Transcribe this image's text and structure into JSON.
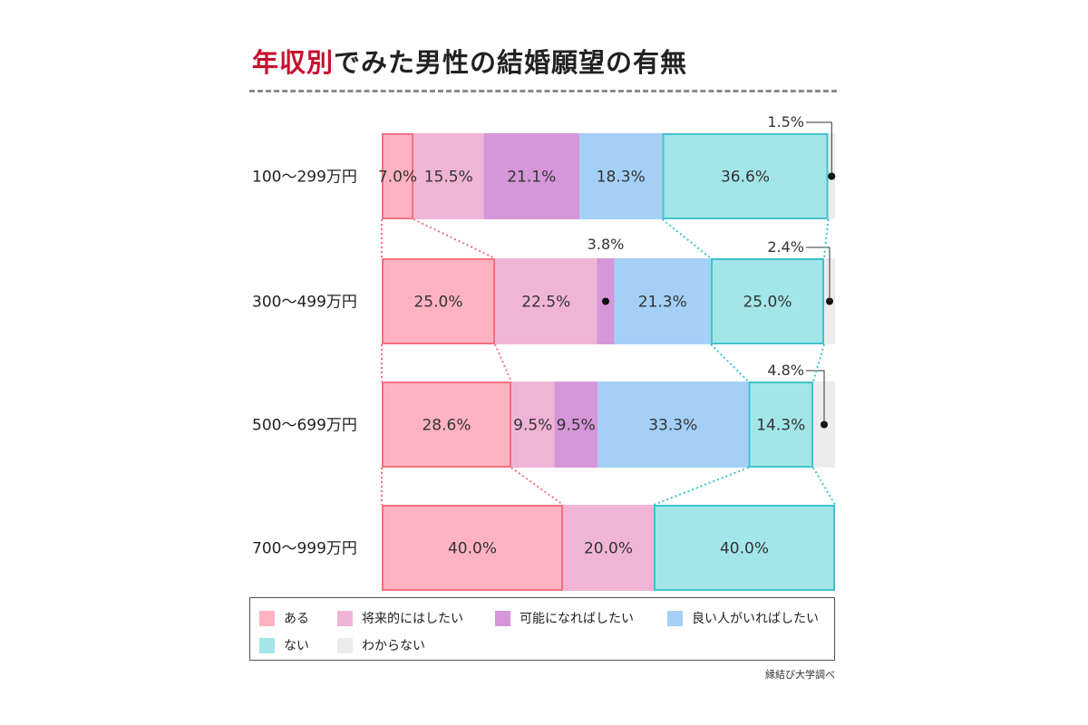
{
  "title": {
    "accent": "年収別",
    "rest": "でみた男性の結婚願望の有無"
  },
  "source": "縁結び大学調べ",
  "colors": {
    "ある": "#ffb3c1",
    "将来的にはしたい": "#f0b5d6",
    "可能になればしたい": "#d597d9",
    "良い人がいればしたい": "#a4d0f7",
    "ない": "#a3e6e9",
    "わからない": "#ececec",
    "ある_border": "#f4707f",
    "ない_border": "#3fc3cc"
  },
  "chart_data": {
    "type": "bar",
    "stacked": true,
    "orientation": "horizontal",
    "title": "年収別でみた男性の結婚願望の有無",
    "categories": [
      "100〜299万円",
      "300〜499万円",
      "500〜699万円",
      "700〜999万円"
    ],
    "series": [
      {
        "name": "ある",
        "values": [
          7.0,
          25.0,
          28.6,
          40.0
        ]
      },
      {
        "name": "将来的にはしたい",
        "values": [
          15.5,
          22.5,
          9.5,
          20.0
        ]
      },
      {
        "name": "可能になればしたい",
        "values": [
          21.1,
          3.8,
          9.5,
          0
        ]
      },
      {
        "name": "良い人がいればしたい",
        "values": [
          18.3,
          21.3,
          33.3,
          0
        ]
      },
      {
        "name": "ない",
        "values": [
          36.6,
          25.0,
          14.3,
          40.0
        ]
      },
      {
        "name": "わからない",
        "values": [
          1.5,
          2.4,
          4.8,
          0
        ]
      }
    ],
    "labels": [
      [
        "7.0%",
        "15.5%",
        "21.1%",
        "18.3%",
        "36.6%",
        "1.5%"
      ],
      [
        "25.0%",
        "22.5%",
        "3.8%",
        "21.3%",
        "25.0%",
        "2.4%"
      ],
      [
        "28.6%",
        "9.5%",
        "9.5%",
        "33.3%",
        "14.3%",
        "4.8%"
      ],
      [
        "40.0%",
        "20.0%",
        "",
        "",
        "40.0%",
        ""
      ]
    ],
    "xlim": [
      0,
      100
    ],
    "legend": "bottom"
  },
  "legend_items": [
    {
      "label": "ある",
      "color": "#ffb3c1"
    },
    {
      "label": "将来的にはしたい",
      "color": "#f0b5d6"
    },
    {
      "label": "可能になればしたい",
      "color": "#d597d9"
    },
    {
      "label": "良い人がいればしたい",
      "color": "#a4d0f7"
    },
    {
      "label": "ない",
      "color": "#a3e6e9"
    },
    {
      "label": "わからない",
      "color": "#ececec"
    }
  ]
}
